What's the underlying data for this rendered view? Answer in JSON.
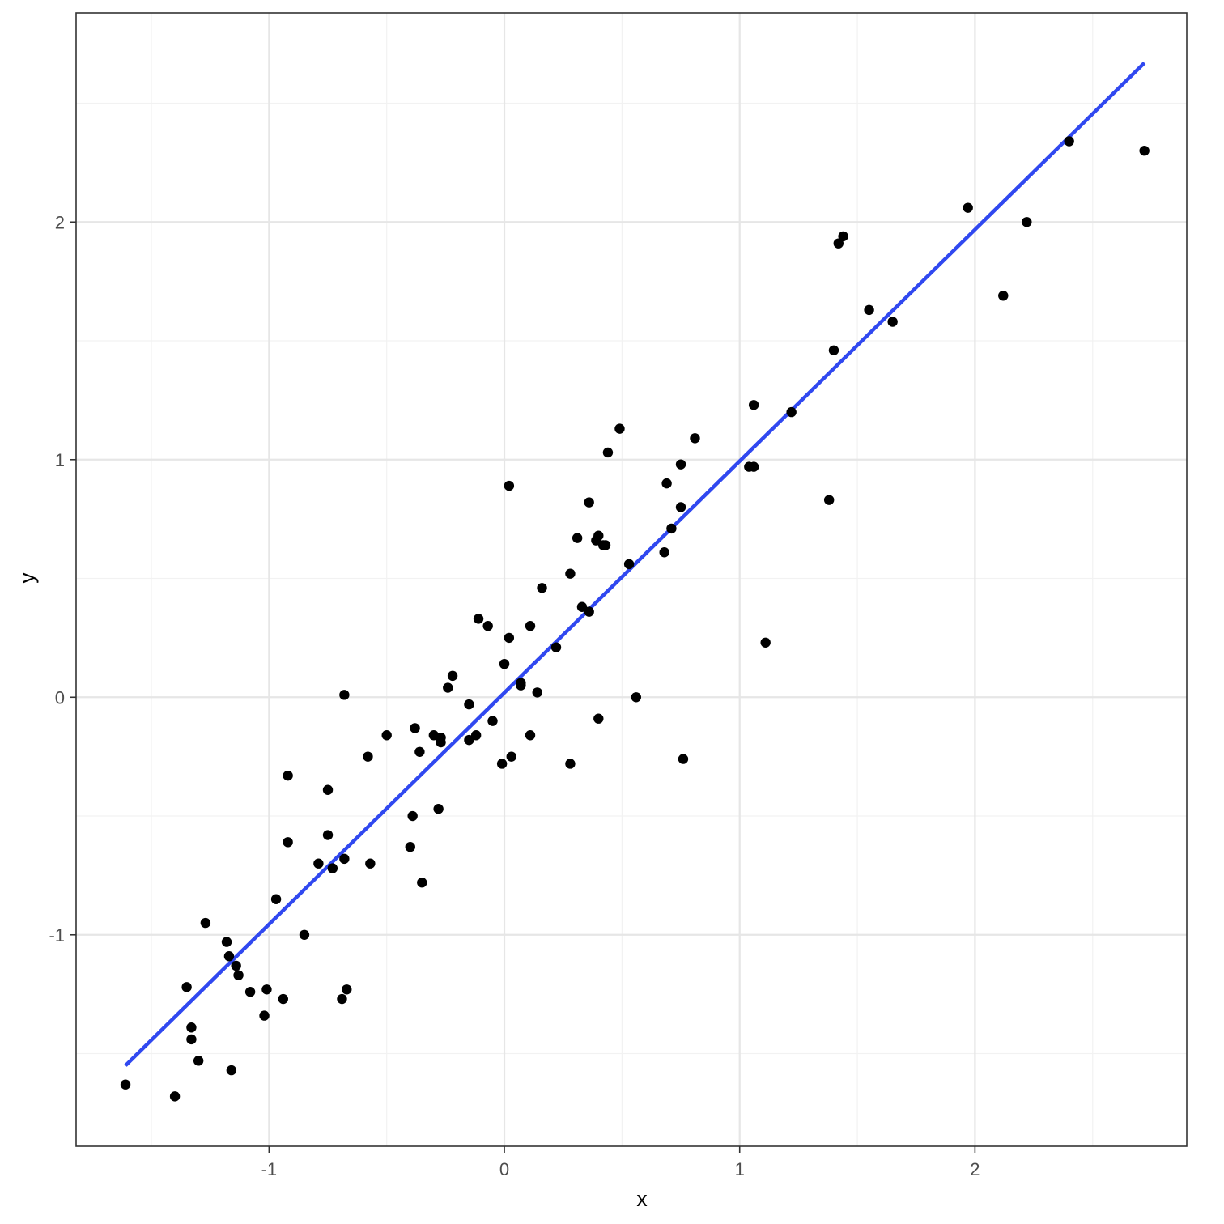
{
  "chart_data": {
    "type": "scatter",
    "title": "",
    "xlabel": "x",
    "ylabel": "y",
    "xlim": [
      -1.82,
      2.9
    ],
    "ylim": [
      -1.89,
      2.88
    ],
    "x_ticks": [
      -1,
      0,
      1,
      2
    ],
    "x_minor_ticks": [
      -1.5,
      -0.5,
      0.5,
      1.5,
      2.5
    ],
    "y_ticks": [
      -1,
      0,
      1,
      2
    ],
    "y_minor_ticks": [
      -1.5,
      -0.5,
      0.5,
      1.5,
      2.5
    ],
    "grid": true,
    "legend": "none",
    "colors": {
      "points": "#000000",
      "fit_line": "#3048f0",
      "grid_major": "#e6e6e6",
      "grid_minor": "#f2f2f2",
      "panel_border": "#333333"
    },
    "points": [
      [
        -1.61,
        -1.63
      ],
      [
        -1.4,
        -1.68
      ],
      [
        -1.35,
        -1.22
      ],
      [
        -1.33,
        -1.39
      ],
      [
        -1.33,
        -1.44
      ],
      [
        -1.3,
        -1.53
      ],
      [
        -1.27,
        -0.95
      ],
      [
        -1.18,
        -1.03
      ],
      [
        -1.17,
        -1.09
      ],
      [
        -1.16,
        -1.57
      ],
      [
        -1.14,
        -1.13
      ],
      [
        -1.13,
        -1.17
      ],
      [
        -1.08,
        -1.24
      ],
      [
        -1.02,
        -1.34
      ],
      [
        -1.01,
        -1.23
      ],
      [
        -0.97,
        -0.85
      ],
      [
        -0.94,
        -1.27
      ],
      [
        -0.92,
        -0.33
      ],
      [
        -0.92,
        -0.61
      ],
      [
        -0.85,
        -1.0
      ],
      [
        -0.79,
        -0.7
      ],
      [
        -0.75,
        -0.39
      ],
      [
        -0.75,
        -0.58
      ],
      [
        -0.73,
        -0.72
      ],
      [
        -0.69,
        -1.27
      ],
      [
        -0.68,
        -0.68
      ],
      [
        -0.68,
        0.01
      ],
      [
        -0.67,
        -1.23
      ],
      [
        -0.58,
        -0.25
      ],
      [
        -0.57,
        -0.7
      ],
      [
        -0.5,
        -0.16
      ],
      [
        -0.4,
        -0.63
      ],
      [
        -0.39,
        -0.5
      ],
      [
        -0.38,
        -0.13
      ],
      [
        -0.36,
        -0.23
      ],
      [
        -0.35,
        -0.78
      ],
      [
        -0.3,
        -0.16
      ],
      [
        -0.28,
        -0.47
      ],
      [
        -0.27,
        -0.17
      ],
      [
        -0.27,
        -0.19
      ],
      [
        -0.24,
        0.04
      ],
      [
        -0.22,
        0.09
      ],
      [
        -0.15,
        -0.03
      ],
      [
        -0.15,
        -0.18
      ],
      [
        -0.12,
        -0.16
      ],
      [
        -0.11,
        0.33
      ],
      [
        -0.07,
        0.3
      ],
      [
        -0.05,
        -0.1
      ],
      [
        -0.01,
        -0.28
      ],
      [
        0.0,
        0.14
      ],
      [
        0.02,
        0.89
      ],
      [
        0.02,
        0.25
      ],
      [
        0.03,
        -0.25
      ],
      [
        0.07,
        0.05
      ],
      [
        0.07,
        0.06
      ],
      [
        0.11,
        0.3
      ],
      [
        0.11,
        -0.16
      ],
      [
        0.14,
        0.02
      ],
      [
        0.16,
        0.46
      ],
      [
        0.22,
        0.21
      ],
      [
        0.28,
        -0.28
      ],
      [
        0.28,
        0.52
      ],
      [
        0.31,
        0.67
      ],
      [
        0.33,
        0.38
      ],
      [
        0.36,
        0.36
      ],
      [
        0.36,
        0.82
      ],
      [
        0.39,
        0.66
      ],
      [
        0.4,
        0.68
      ],
      [
        0.4,
        -0.09
      ],
      [
        0.42,
        0.64
      ],
      [
        0.43,
        0.64
      ],
      [
        0.44,
        1.03
      ],
      [
        0.49,
        1.13
      ],
      [
        0.53,
        0.56
      ],
      [
        0.56,
        0.0
      ],
      [
        0.68,
        0.61
      ],
      [
        0.69,
        0.9
      ],
      [
        0.71,
        0.71
      ],
      [
        0.75,
        0.8
      ],
      [
        0.75,
        0.98
      ],
      [
        0.76,
        -0.26
      ],
      [
        0.81,
        1.09
      ],
      [
        1.04,
        0.97
      ],
      [
        1.06,
        0.97
      ],
      [
        1.06,
        1.23
      ],
      [
        1.11,
        0.23
      ],
      [
        1.22,
        1.2
      ],
      [
        1.38,
        0.83
      ],
      [
        1.4,
        1.46
      ],
      [
        1.42,
        1.91
      ],
      [
        1.44,
        1.94
      ],
      [
        1.55,
        1.63
      ],
      [
        1.65,
        1.58
      ],
      [
        1.97,
        2.06
      ],
      [
        2.12,
        1.69
      ],
      [
        2.22,
        2.0
      ],
      [
        2.4,
        2.34
      ],
      [
        2.72,
        2.3
      ]
    ],
    "fit_line": {
      "x": [
        -1.61,
        2.72
      ],
      "y": [
        -1.55,
        2.67
      ]
    }
  }
}
